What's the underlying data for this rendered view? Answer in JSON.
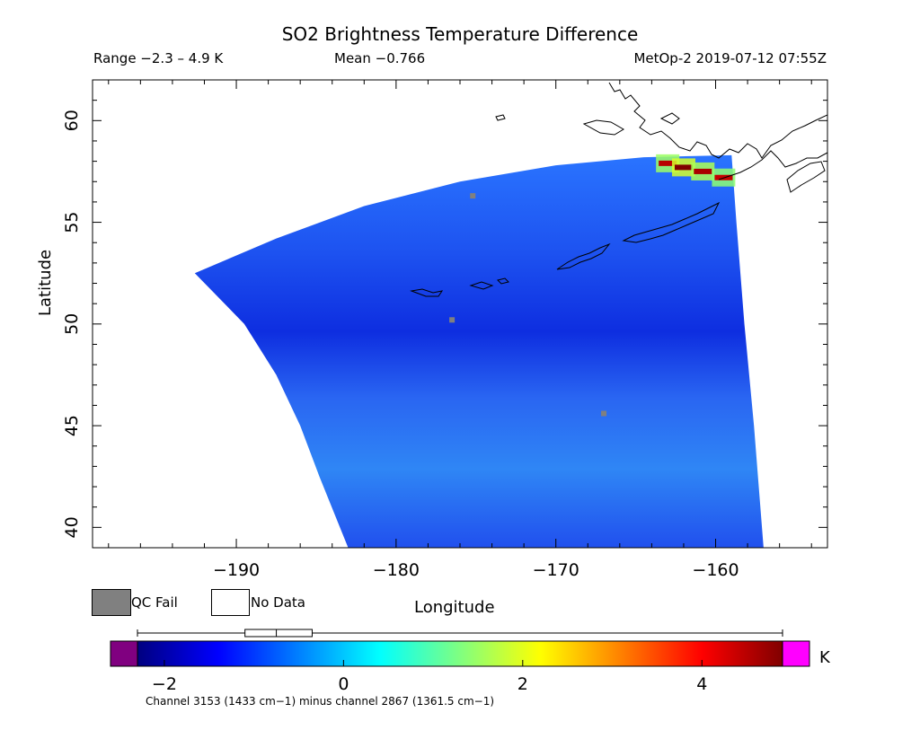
{
  "chart_data": {
    "type": "heatmap",
    "title": "SO2 Brightness Temperature Difference",
    "header": {
      "range": "Range −2.3 – 4.9 K",
      "mean": "Mean −0.766",
      "platform": "MetOp-2 2019-07-12 07:55Z"
    },
    "xlabel": "Longitude",
    "ylabel": "Latitude",
    "xlim": [
      -199,
      -153
    ],
    "ylim": [
      39,
      62
    ],
    "xticks": [
      -190,
      -180,
      -170,
      -160
    ],
    "xtick_labels": [
      "−190",
      "−180",
      "−170",
      "−160"
    ],
    "yticks": [
      40,
      45,
      50,
      55,
      60
    ],
    "ytick_labels": [
      "40",
      "45",
      "50",
      "55",
      "60"
    ],
    "swath_edge_west": [
      [
        -192.6,
        52.5
      ],
      [
        -189.5,
        50.0
      ],
      [
        -187.5,
        47.5
      ],
      [
        -186.0,
        45.0
      ],
      [
        -184.8,
        42.5
      ],
      [
        -183.0,
        39.0
      ]
    ],
    "swath_edge_north": [
      [
        -192.6,
        52.5
      ],
      [
        -187.5,
        54.2
      ],
      [
        -182.0,
        55.8
      ],
      [
        -176.0,
        57.0
      ],
      [
        -170.0,
        57.8
      ],
      [
        -164.5,
        58.2
      ],
      [
        -159.0,
        58.3
      ]
    ],
    "swath_edge_east": [
      [
        -159.0,
        58.3
      ],
      [
        -158.7,
        55.0
      ],
      [
        -158.2,
        50.0
      ],
      [
        -157.6,
        45.0
      ],
      [
        -157.0,
        39.0
      ]
    ],
    "hotspots": [
      {
        "lon": -163.0,
        "lat": 57.9,
        "value": 4.5
      },
      {
        "lon": -162.0,
        "lat": 57.7,
        "value": 4.9
      },
      {
        "lon": -160.8,
        "lat": 57.5,
        "value": 4.6
      },
      {
        "lon": -159.5,
        "lat": 57.2,
        "value": 4.4
      }
    ],
    "qc_fail_points": [
      [
        -175.2,
        56.3
      ],
      [
        -176.5,
        50.2
      ],
      [
        -167.0,
        45.6
      ]
    ],
    "colorbar": {
      "min": -2.3,
      "max": 4.9,
      "ticks": [
        -2,
        0,
        2,
        4
      ],
      "tick_labels": [
        "−2",
        "0",
        "2",
        "4"
      ],
      "unit": "K",
      "colors": [
        "#000080",
        "#0000ff",
        "#0080ff",
        "#00ffff",
        "#80ff80",
        "#ffff00",
        "#ff8000",
        "#ff0000",
        "#800000"
      ],
      "under_color": "#800080",
      "over_color": "#ff00ff",
      "boxplot": {
        "min": -2.3,
        "q1": -1.1,
        "median": -0.75,
        "q3": -0.35,
        "max": 4.9
      }
    },
    "legend": {
      "qc_fail": "QC Fail",
      "no_data": "No Data",
      "qc_fail_color": "#808080",
      "no_data_color": "#ffffff"
    },
    "caption": "Channel 3153 (1433 cm−1) minus channel 2867 (1361.5 cm−1)"
  }
}
